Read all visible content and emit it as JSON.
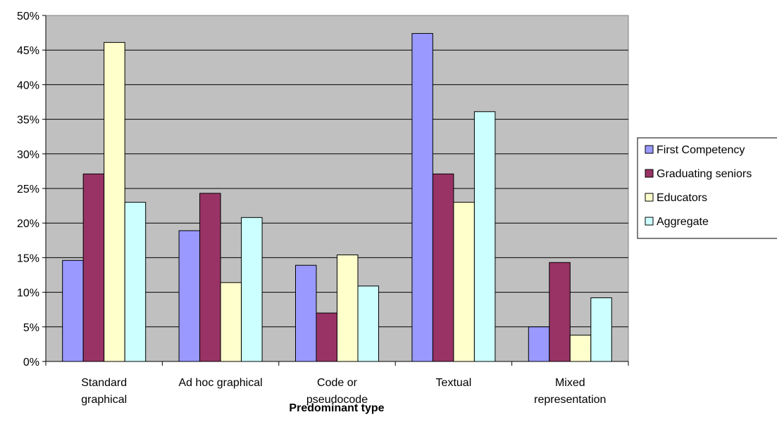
{
  "chart_data": {
    "type": "bar",
    "title": "",
    "xlabel": "Predominant type",
    "ylabel": "",
    "categories": [
      [
        "Standard",
        "graphical"
      ],
      [
        "Ad hoc graphical"
      ],
      [
        "Code or",
        "pseudocode"
      ],
      [
        "Textual"
      ],
      [
        "Mixed",
        "representation"
      ]
    ],
    "series": [
      {
        "name": "First Competency",
        "color": "#9999ff",
        "values": [
          14.6,
          18.9,
          13.9,
          47.4,
          5.0
        ]
      },
      {
        "name": "Graduating seniors",
        "color": "#993366",
        "values": [
          27.1,
          24.3,
          7.0,
          27.1,
          14.3
        ]
      },
      {
        "name": "Educators",
        "color": "#ffffcc",
        "values": [
          46.1,
          11.4,
          15.4,
          23.0,
          3.8
        ]
      },
      {
        "name": "Aggregate",
        "color": "#ccffff",
        "values": [
          23.0,
          20.8,
          10.9,
          36.1,
          9.2
        ]
      }
    ],
    "ylim": [
      0,
      50
    ],
    "yticks": [
      0,
      5,
      10,
      15,
      20,
      25,
      30,
      35,
      40,
      45,
      50
    ],
    "ytick_labels": [
      "0%",
      "5%",
      "10%",
      "15%",
      "20%",
      "25%",
      "30%",
      "35%",
      "40%",
      "45%",
      "50%"
    ],
    "grid": true,
    "plot_background": "#c0c0c0",
    "legend_position": "right"
  }
}
